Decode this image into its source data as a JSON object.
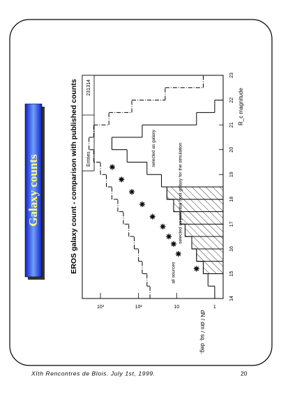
{
  "slide": {
    "title": "Galaxy counts",
    "footer": "XIth Rencontres de Blois. July 1st, 1999.",
    "page": "20"
  },
  "chart_data": {
    "type": "histogram",
    "title": "EROS galaxy count - comparison with published counts",
    "x_label": "R_c magnitude",
    "y_label": "dN / dm / sq. deg.",
    "stats": {
      "label": "Entries",
      "value": "231314"
    },
    "bins": [
      14,
      14.5,
      15,
      15.5,
      16,
      16.5,
      17,
      17.5,
      18,
      18.5,
      19,
      19.5,
      20,
      20.5,
      21,
      21.5,
      22,
      22.5,
      23
    ],
    "series": [
      {
        "name": "all sources",
        "color": "#000000",
        "dash": "6 2 1 2",
        "values": [
          50,
          60,
          80,
          100,
          130,
          180,
          250,
          350,
          500,
          700,
          1000,
          1500,
          2000,
          1500,
          600,
          150,
          20,
          2
        ]
      },
      {
        "name": "selected as galaxy",
        "color": "#000000",
        "values": [
          1,
          1.5,
          2,
          3,
          4,
          6,
          8,
          12,
          18,
          25,
          60,
          200,
          500,
          80,
          3,
          1,
          null,
          null
        ]
      },
      {
        "name": "selected as potential host galaxy for the simulation",
        "color": "#000000",
        "hatched": true,
        "values": [
          null,
          null,
          2,
          3,
          4,
          6,
          8,
          12,
          18,
          null,
          null,
          null,
          null,
          null,
          null,
          null,
          null,
          null
        ]
      }
    ],
    "points": {
      "marker": "star",
      "x": [
        15.2,
        15.8,
        16.2,
        16.5,
        16.9,
        17.3,
        17.8,
        18.3,
        18.8,
        19.3
      ],
      "values": [
        3,
        9,
        12,
        16,
        23,
        43,
        80,
        150,
        280,
        490
      ]
    },
    "xlim": [
      14,
      23
    ],
    "xticks": [
      14,
      15,
      16,
      17,
      18,
      19,
      20,
      21,
      22,
      23
    ],
    "ylim": [
      0.6,
      3000
    ],
    "log_y": true,
    "yticks": [
      1,
      10,
      {
        "value": 100,
        "label": "10²"
      },
      {
        "value": 1000,
        "label": "10³"
      }
    ]
  }
}
